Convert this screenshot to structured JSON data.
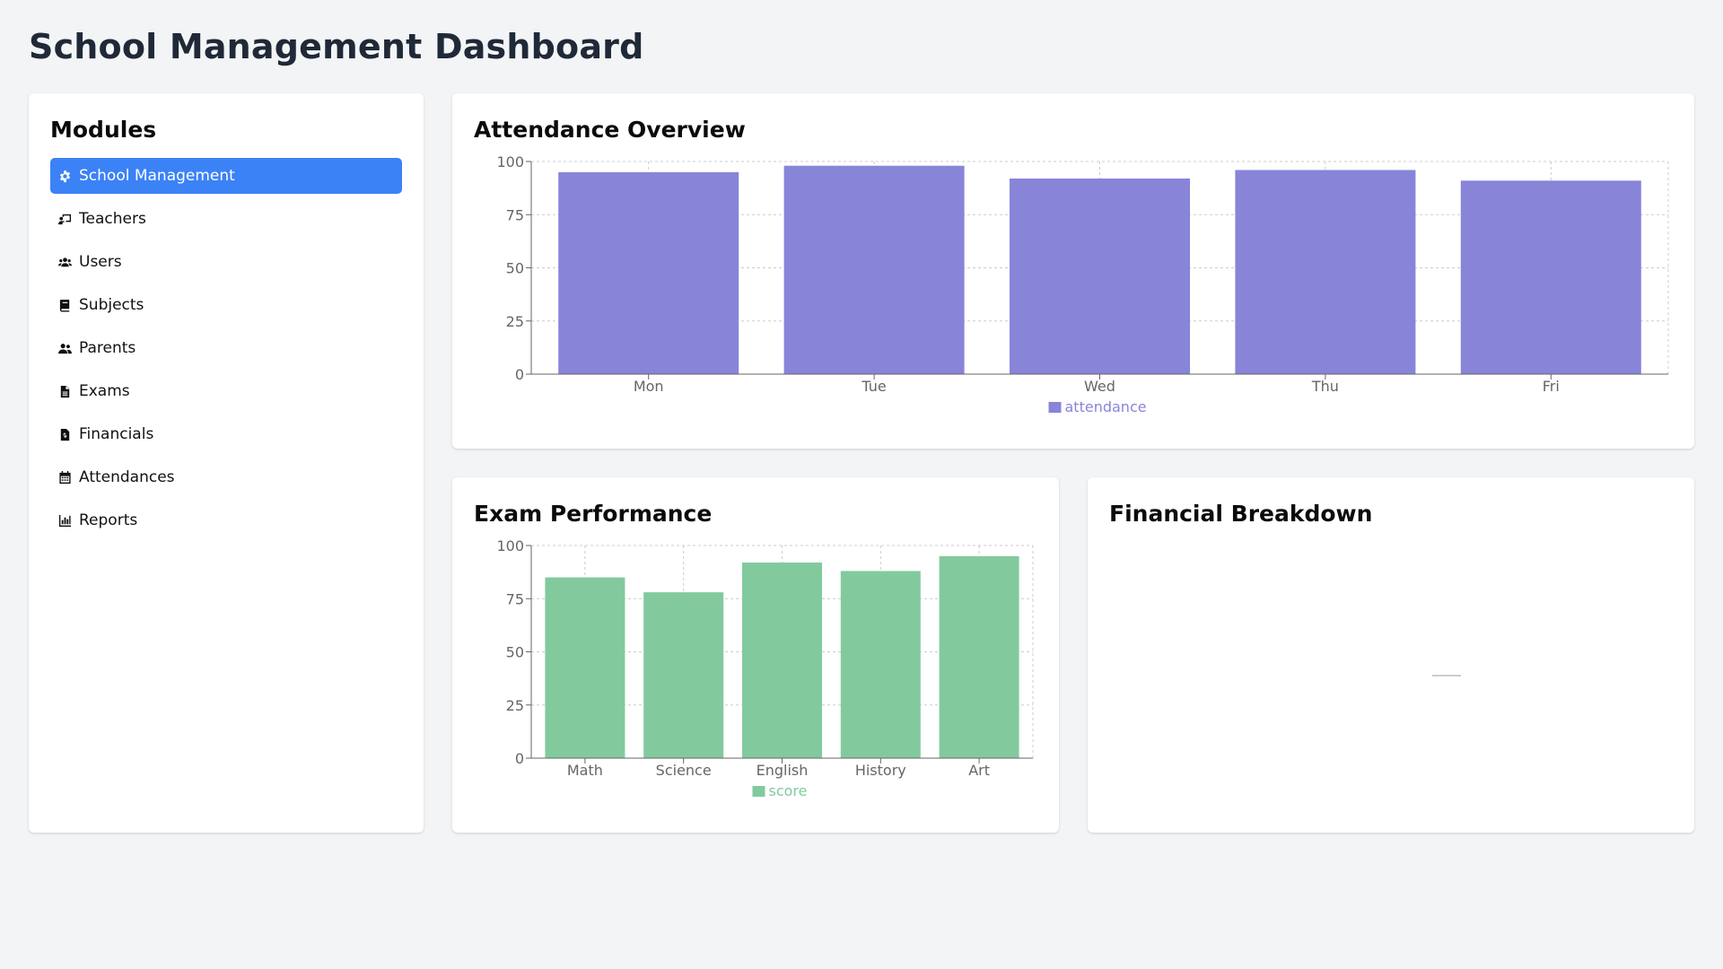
{
  "page": {
    "title": "School Management Dashboard"
  },
  "sidebar": {
    "title": "Modules",
    "items": [
      {
        "label": "School Management",
        "icon": "gear-icon",
        "active": true
      },
      {
        "label": "Teachers",
        "icon": "chalkboard-teacher-icon",
        "active": false
      },
      {
        "label": "Users",
        "icon": "users-icon",
        "active": false
      },
      {
        "label": "Subjects",
        "icon": "book-icon",
        "active": false
      },
      {
        "label": "Parents",
        "icon": "user-friends-icon",
        "active": false
      },
      {
        "label": "Exams",
        "icon": "file-alt-icon",
        "active": false
      },
      {
        "label": "Financials",
        "icon": "file-invoice-dollar-icon",
        "active": false
      },
      {
        "label": "Attendances",
        "icon": "calendar-icon",
        "active": false
      },
      {
        "label": "Reports",
        "icon": "chart-bar-icon",
        "active": false
      }
    ]
  },
  "attendance": {
    "title": "Attendance Overview"
  },
  "exam": {
    "title": "Exam Performance"
  },
  "financial": {
    "title": "Financial Breakdown"
  },
  "colors": {
    "accent": "#3b82f6",
    "attendance_bar": "#8884d8",
    "score_bar": "#82ca9d",
    "grid": "#cccccc",
    "axis": "#666666"
  },
  "chart_data": [
    {
      "type": "bar",
      "categories": [
        "Mon",
        "Tue",
        "Wed",
        "Thu",
        "Fri"
      ],
      "series": [
        {
          "name": "attendance",
          "values": [
            95,
            98,
            92,
            96,
            91
          ]
        }
      ],
      "ylim": [
        0,
        100
      ],
      "yticks": [
        0,
        25,
        50,
        75,
        100
      ],
      "grid": true,
      "legend": "bottom-center"
    },
    {
      "type": "bar",
      "categories": [
        "Math",
        "Science",
        "English",
        "History",
        "Art"
      ],
      "series": [
        {
          "name": "score",
          "values": [
            85,
            78,
            92,
            88,
            95
          ]
        }
      ],
      "ylim": [
        0,
        100
      ],
      "yticks": [
        0,
        25,
        50,
        75,
        100
      ],
      "grid": true,
      "legend": "bottom-center"
    },
    {
      "type": "pie",
      "categories": [],
      "values": []
    }
  ]
}
